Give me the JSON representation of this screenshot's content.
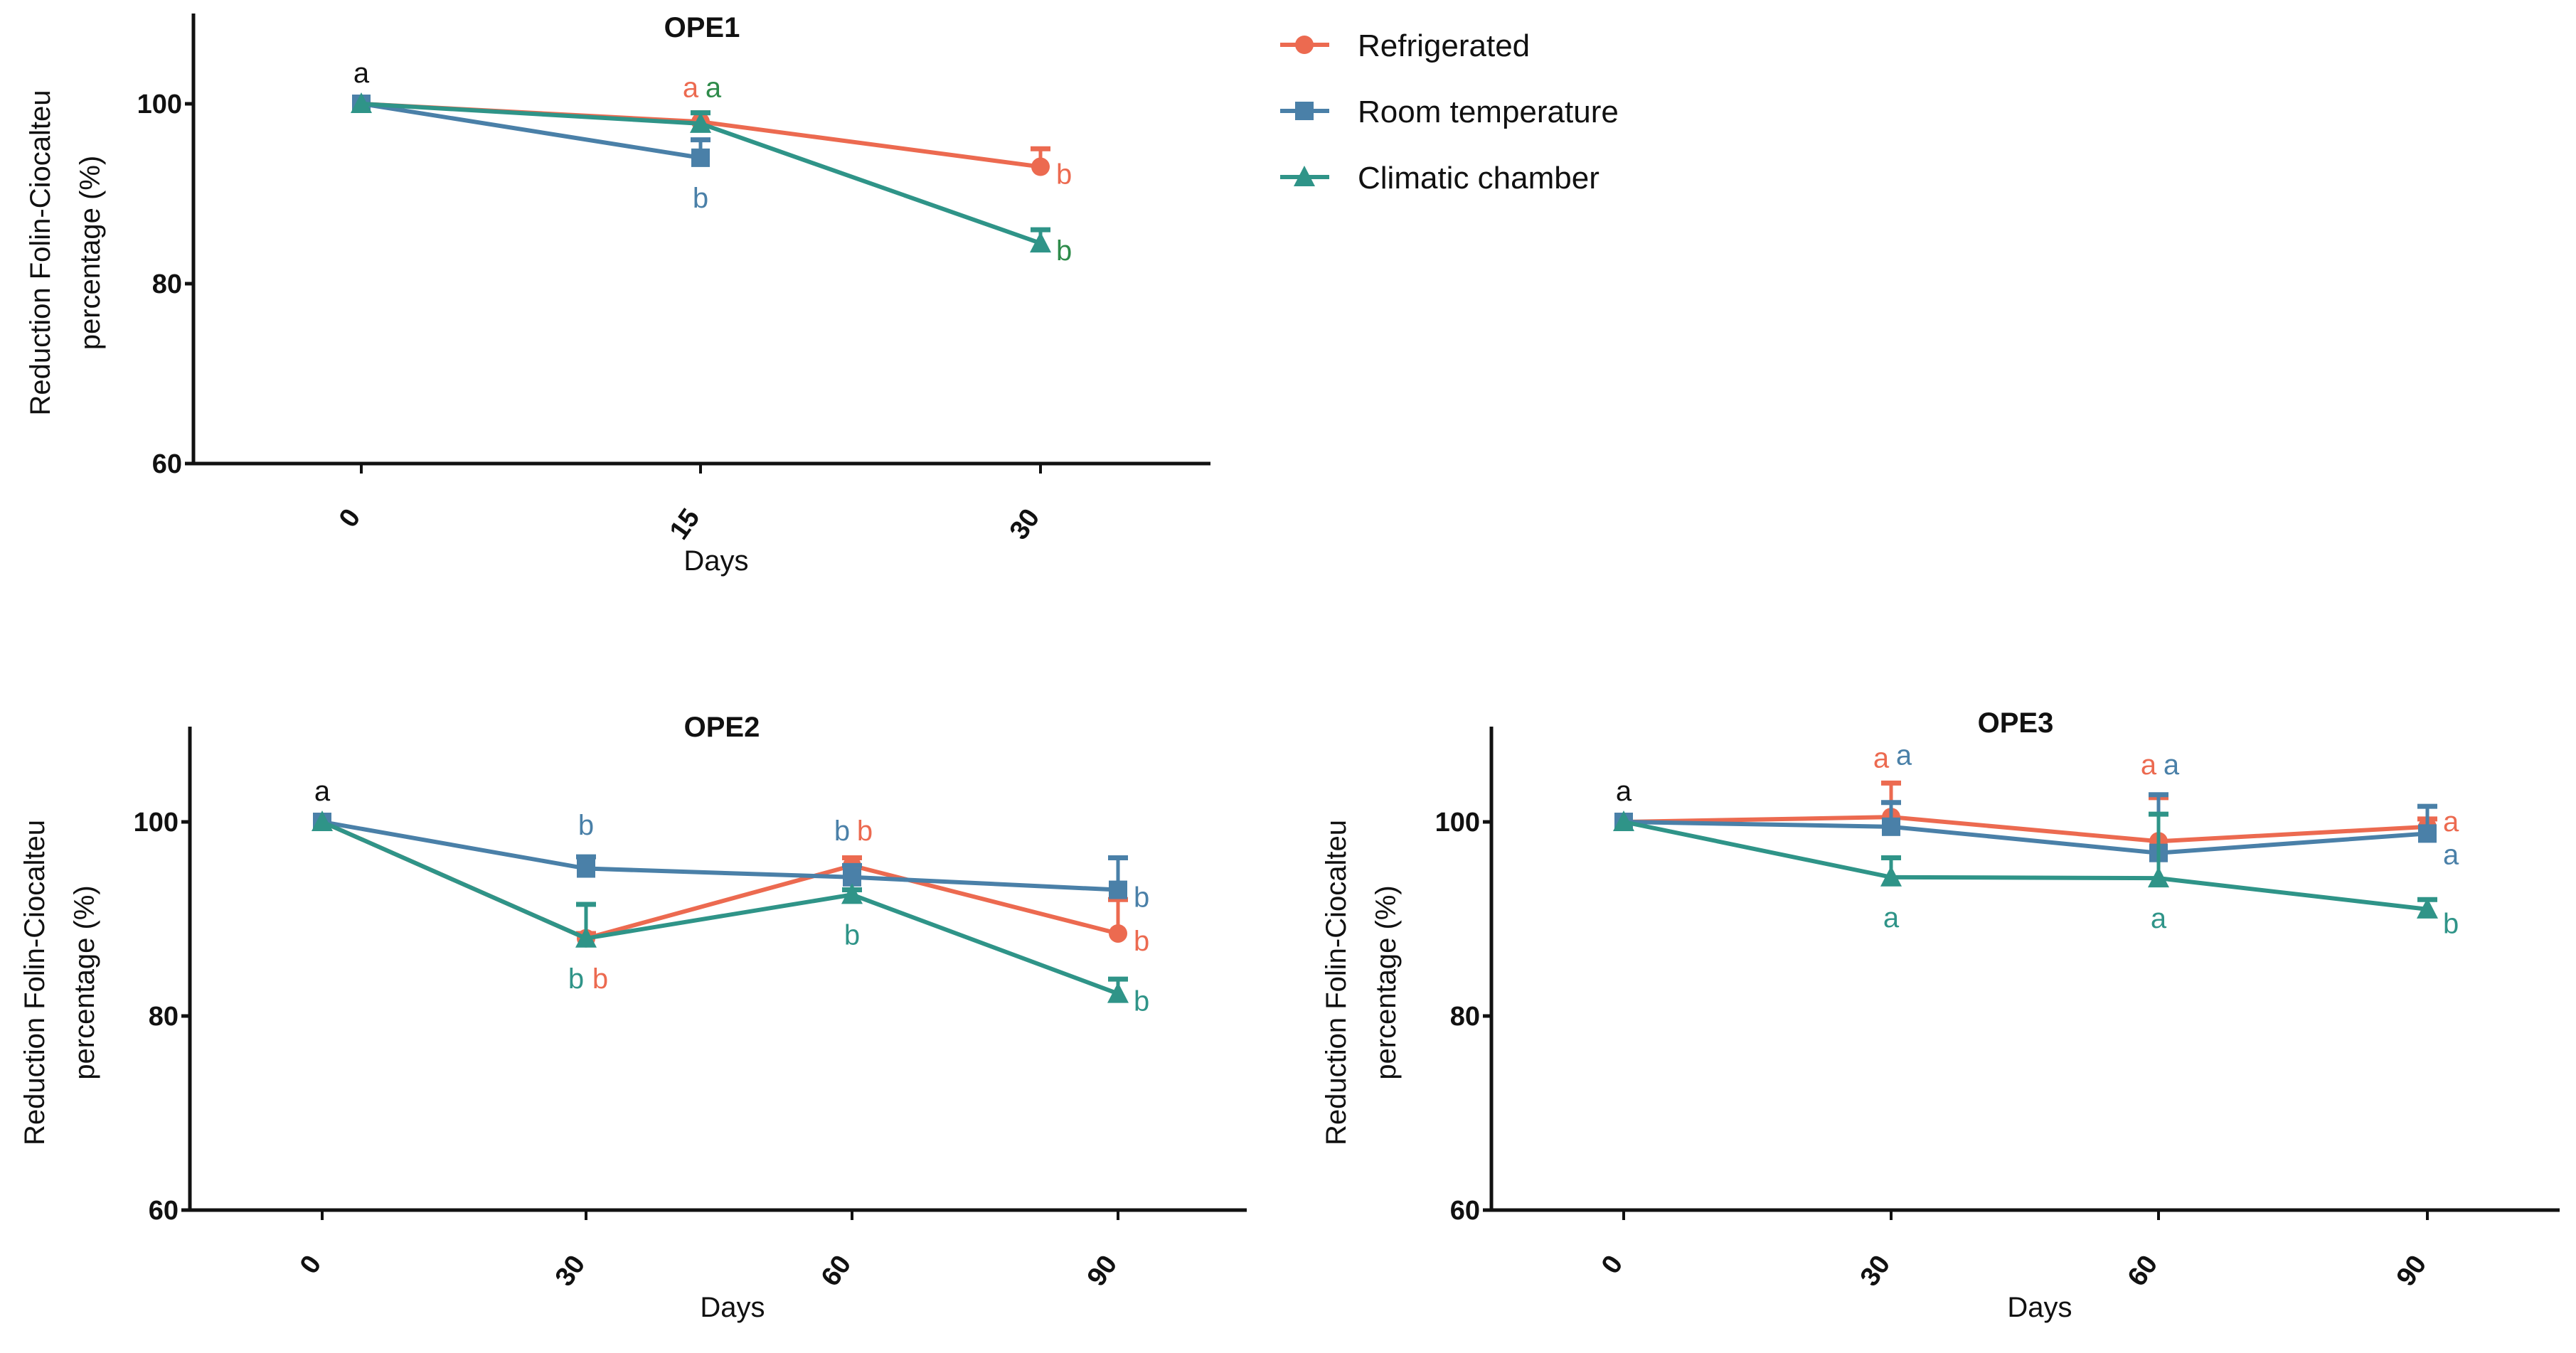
{
  "colors": {
    "Refrigerated": "#ec6a50",
    "Room temperature": "#4a80a8",
    "Climatic chamber": "#2f9488",
    "black": "#111111",
    "green": "#2e8b4a"
  },
  "legend": [
    "Refrigerated",
    "Room temperature",
    "Climatic chamber"
  ],
  "chart_data": [
    {
      "type": "line",
      "title": "OPE1",
      "xlabel": "Days",
      "ylabel": [
        "Reduction Folin-Ciocalteu",
        "percentage (%)"
      ],
      "x": [
        0,
        15,
        30
      ],
      "ylim": [
        60,
        110
      ],
      "yticks": [
        60,
        80,
        100
      ],
      "grid": false,
      "legend_position": "top-right",
      "series": [
        {
          "name": "Refrigerated",
          "marker": "circle",
          "values": [
            100,
            98,
            93
          ],
          "err": [
            0,
            1,
            2
          ]
        },
        {
          "name": "Room temperature",
          "marker": "square",
          "values": [
            100,
            94,
            null
          ],
          "err": [
            0,
            2,
            0
          ]
        },
        {
          "name": "Climatic chamber",
          "marker": "triangle",
          "values": [
            100,
            97.8,
            84.5
          ],
          "err": [
            0,
            1.2,
            1.5
          ]
        }
      ],
      "annotations": [
        {
          "text": "a",
          "x": 0,
          "y": 100,
          "pos": "above",
          "color": "black"
        },
        {
          "text": "a",
          "x": 15,
          "y": 99,
          "pos": "above-left",
          "color": "Refrigerated"
        },
        {
          "text": "a",
          "x": 15,
          "y": 99,
          "pos": "above-right",
          "color": "green"
        },
        {
          "text": "b",
          "x": 15,
          "y": 94,
          "pos": "below",
          "color": "Room temperature"
        },
        {
          "text": "b",
          "x": 30,
          "y": 93,
          "pos": "right",
          "color": "Refrigerated"
        },
        {
          "text": "b",
          "x": 30,
          "y": 84.5,
          "pos": "right",
          "color": "green"
        }
      ]
    },
    {
      "type": "line",
      "title": "OPE2",
      "xlabel": "Days",
      "ylabel": [
        "Reduction Folin-Ciocalteu",
        "percentage (%)"
      ],
      "x": [
        0,
        30,
        60,
        90
      ],
      "ylim": [
        60,
        110
      ],
      "yticks": [
        60,
        80,
        100
      ],
      "grid": false,
      "series": [
        {
          "name": "Refrigerated",
          "marker": "circle",
          "values": [
            100,
            88,
            95.5,
            88.5
          ],
          "err": [
            0,
            0.5,
            0.8,
            3.5
          ]
        },
        {
          "name": "Room temperature",
          "marker": "square",
          "values": [
            100,
            95.2,
            94.3,
            93
          ],
          "err": [
            0,
            1.2,
            1.2,
            3.3
          ]
        },
        {
          "name": "Climatic chamber",
          "marker": "triangle",
          "values": [
            100,
            88,
            92.5,
            82.3
          ],
          "err": [
            0,
            3.5,
            0.5,
            1.5
          ]
        }
      ],
      "annotations": [
        {
          "text": "a",
          "x": 0,
          "y": 100,
          "pos": "above",
          "color": "black"
        },
        {
          "text": "b",
          "x": 30,
          "y": 96.5,
          "pos": "above",
          "color": "Room temperature"
        },
        {
          "text": "b",
          "x": 30,
          "y": 88,
          "pos": "below-left",
          "color": "Climatic chamber"
        },
        {
          "text": "b",
          "x": 30,
          "y": 88,
          "pos": "below-right",
          "color": "Refrigerated"
        },
        {
          "text": "b",
          "x": 60,
          "y": 96.5,
          "pos": "above-left",
          "color": "Room temperature"
        },
        {
          "text": "b",
          "x": 60,
          "y": 96.5,
          "pos": "above-right",
          "color": "Refrigerated"
        },
        {
          "text": "b",
          "x": 60,
          "y": 92.5,
          "pos": "below",
          "color": "Climatic chamber"
        },
        {
          "text": "b",
          "x": 90,
          "y": 93,
          "pos": "right",
          "color": "Room temperature"
        },
        {
          "text": "b",
          "x": 90,
          "y": 88.5,
          "pos": "right",
          "color": "Refrigerated"
        },
        {
          "text": "b",
          "x": 90,
          "y": 82.3,
          "pos": "right",
          "color": "Climatic chamber"
        }
      ]
    },
    {
      "type": "line",
      "title": "OPE3",
      "xlabel": "Days",
      "ylabel": [
        "Reduction Folin-Ciocalteu",
        "percentage (%)"
      ],
      "x": [
        0,
        30,
        60,
        90
      ],
      "ylim": [
        60,
        110
      ],
      "yticks": [
        60,
        80,
        100
      ],
      "grid": false,
      "series": [
        {
          "name": "Refrigerated",
          "marker": "circle",
          "values": [
            100,
            100.5,
            98,
            99.5
          ],
          "err": [
            0,
            3.5,
            4.5,
            0.8
          ]
        },
        {
          "name": "Room temperature",
          "marker": "square",
          "values": [
            100,
            99.5,
            96.8,
            98.8
          ],
          "err": [
            0,
            2.5,
            6,
            2.8
          ]
        },
        {
          "name": "Climatic chamber",
          "marker": "triangle",
          "values": [
            100,
            94.3,
            94.2,
            91
          ],
          "err": [
            0,
            2,
            6.6,
            1
          ]
        }
      ],
      "annotations": [
        {
          "text": "a",
          "x": 0,
          "y": 100,
          "pos": "above",
          "color": "black"
        },
        {
          "text": "a",
          "x": 30,
          "y": 104,
          "pos": "above-left",
          "color": "Refrigerated"
        },
        {
          "text": "a",
          "x": 30,
          "y": 104.3,
          "pos": "above-right",
          "color": "Room temperature"
        },
        {
          "text": "a",
          "x": 60,
          "y": 103.3,
          "pos": "above-left",
          "color": "Refrigerated"
        },
        {
          "text": "a",
          "x": 60,
          "y": 103.3,
          "pos": "above-right",
          "color": "Room temperature"
        },
        {
          "text": "a",
          "x": 30,
          "y": 94.3,
          "pos": "below",
          "color": "Climatic chamber"
        },
        {
          "text": "a",
          "x": 60,
          "y": 94.2,
          "pos": "below",
          "color": "Climatic chamber"
        },
        {
          "text": "a",
          "x": 90,
          "y": 100.8,
          "pos": "right",
          "color": "Refrigerated"
        },
        {
          "text": "a",
          "x": 90,
          "y": 97.4,
          "pos": "right",
          "color": "Room temperature"
        },
        {
          "text": "b",
          "x": 90,
          "y": 90.3,
          "pos": "right",
          "color": "Climatic chamber"
        }
      ]
    }
  ]
}
